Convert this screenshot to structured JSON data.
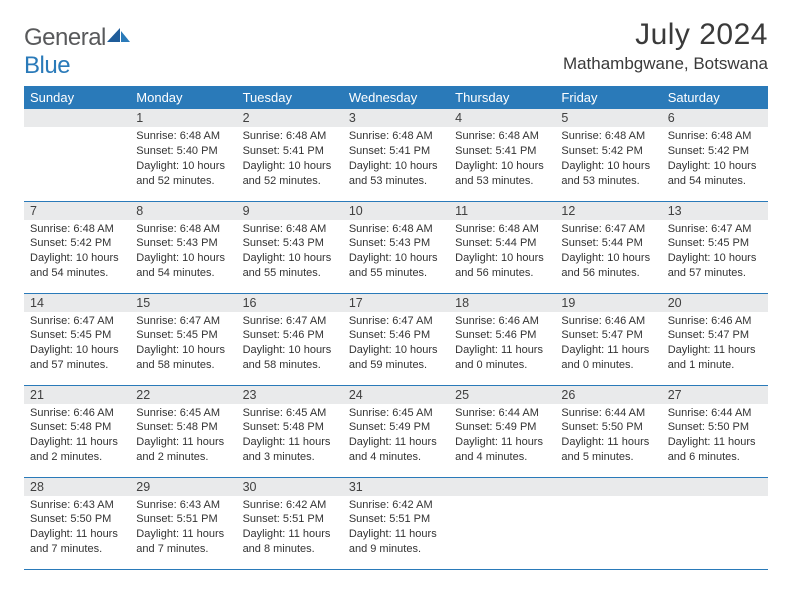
{
  "brand": {
    "part1": "General",
    "part2": "Blue"
  },
  "title": "July 2024",
  "location": "Mathambgwane, Botswana",
  "colors": {
    "accent": "#2a7ab9",
    "header_bg": "#2a7ab9",
    "header_text": "#ffffff",
    "daynum_bg": "#e9eaeb",
    "text": "#333333",
    "logo_gray": "#58595b"
  },
  "weekdays": [
    "Sunday",
    "Monday",
    "Tuesday",
    "Wednesday",
    "Thursday",
    "Friday",
    "Saturday"
  ],
  "weeks": [
    [
      {
        "day": "",
        "sunrise": "",
        "sunset": "",
        "daylight1": "",
        "daylight2": ""
      },
      {
        "day": "1",
        "sunrise": "Sunrise: 6:48 AM",
        "sunset": "Sunset: 5:40 PM",
        "daylight1": "Daylight: 10 hours",
        "daylight2": "and 52 minutes."
      },
      {
        "day": "2",
        "sunrise": "Sunrise: 6:48 AM",
        "sunset": "Sunset: 5:41 PM",
        "daylight1": "Daylight: 10 hours",
        "daylight2": "and 52 minutes."
      },
      {
        "day": "3",
        "sunrise": "Sunrise: 6:48 AM",
        "sunset": "Sunset: 5:41 PM",
        "daylight1": "Daylight: 10 hours",
        "daylight2": "and 53 minutes."
      },
      {
        "day": "4",
        "sunrise": "Sunrise: 6:48 AM",
        "sunset": "Sunset: 5:41 PM",
        "daylight1": "Daylight: 10 hours",
        "daylight2": "and 53 minutes."
      },
      {
        "day": "5",
        "sunrise": "Sunrise: 6:48 AM",
        "sunset": "Sunset: 5:42 PM",
        "daylight1": "Daylight: 10 hours",
        "daylight2": "and 53 minutes."
      },
      {
        "day": "6",
        "sunrise": "Sunrise: 6:48 AM",
        "sunset": "Sunset: 5:42 PM",
        "daylight1": "Daylight: 10 hours",
        "daylight2": "and 54 minutes."
      }
    ],
    [
      {
        "day": "7",
        "sunrise": "Sunrise: 6:48 AM",
        "sunset": "Sunset: 5:42 PM",
        "daylight1": "Daylight: 10 hours",
        "daylight2": "and 54 minutes."
      },
      {
        "day": "8",
        "sunrise": "Sunrise: 6:48 AM",
        "sunset": "Sunset: 5:43 PM",
        "daylight1": "Daylight: 10 hours",
        "daylight2": "and 54 minutes."
      },
      {
        "day": "9",
        "sunrise": "Sunrise: 6:48 AM",
        "sunset": "Sunset: 5:43 PM",
        "daylight1": "Daylight: 10 hours",
        "daylight2": "and 55 minutes."
      },
      {
        "day": "10",
        "sunrise": "Sunrise: 6:48 AM",
        "sunset": "Sunset: 5:43 PM",
        "daylight1": "Daylight: 10 hours",
        "daylight2": "and 55 minutes."
      },
      {
        "day": "11",
        "sunrise": "Sunrise: 6:48 AM",
        "sunset": "Sunset: 5:44 PM",
        "daylight1": "Daylight: 10 hours",
        "daylight2": "and 56 minutes."
      },
      {
        "day": "12",
        "sunrise": "Sunrise: 6:47 AM",
        "sunset": "Sunset: 5:44 PM",
        "daylight1": "Daylight: 10 hours",
        "daylight2": "and 56 minutes."
      },
      {
        "day": "13",
        "sunrise": "Sunrise: 6:47 AM",
        "sunset": "Sunset: 5:45 PM",
        "daylight1": "Daylight: 10 hours",
        "daylight2": "and 57 minutes."
      }
    ],
    [
      {
        "day": "14",
        "sunrise": "Sunrise: 6:47 AM",
        "sunset": "Sunset: 5:45 PM",
        "daylight1": "Daylight: 10 hours",
        "daylight2": "and 57 minutes."
      },
      {
        "day": "15",
        "sunrise": "Sunrise: 6:47 AM",
        "sunset": "Sunset: 5:45 PM",
        "daylight1": "Daylight: 10 hours",
        "daylight2": "and 58 minutes."
      },
      {
        "day": "16",
        "sunrise": "Sunrise: 6:47 AM",
        "sunset": "Sunset: 5:46 PM",
        "daylight1": "Daylight: 10 hours",
        "daylight2": "and 58 minutes."
      },
      {
        "day": "17",
        "sunrise": "Sunrise: 6:47 AM",
        "sunset": "Sunset: 5:46 PM",
        "daylight1": "Daylight: 10 hours",
        "daylight2": "and 59 minutes."
      },
      {
        "day": "18",
        "sunrise": "Sunrise: 6:46 AM",
        "sunset": "Sunset: 5:46 PM",
        "daylight1": "Daylight: 11 hours",
        "daylight2": "and 0 minutes."
      },
      {
        "day": "19",
        "sunrise": "Sunrise: 6:46 AM",
        "sunset": "Sunset: 5:47 PM",
        "daylight1": "Daylight: 11 hours",
        "daylight2": "and 0 minutes."
      },
      {
        "day": "20",
        "sunrise": "Sunrise: 6:46 AM",
        "sunset": "Sunset: 5:47 PM",
        "daylight1": "Daylight: 11 hours",
        "daylight2": "and 1 minute."
      }
    ],
    [
      {
        "day": "21",
        "sunrise": "Sunrise: 6:46 AM",
        "sunset": "Sunset: 5:48 PM",
        "daylight1": "Daylight: 11 hours",
        "daylight2": "and 2 minutes."
      },
      {
        "day": "22",
        "sunrise": "Sunrise: 6:45 AM",
        "sunset": "Sunset: 5:48 PM",
        "daylight1": "Daylight: 11 hours",
        "daylight2": "and 2 minutes."
      },
      {
        "day": "23",
        "sunrise": "Sunrise: 6:45 AM",
        "sunset": "Sunset: 5:48 PM",
        "daylight1": "Daylight: 11 hours",
        "daylight2": "and 3 minutes."
      },
      {
        "day": "24",
        "sunrise": "Sunrise: 6:45 AM",
        "sunset": "Sunset: 5:49 PM",
        "daylight1": "Daylight: 11 hours",
        "daylight2": "and 4 minutes."
      },
      {
        "day": "25",
        "sunrise": "Sunrise: 6:44 AM",
        "sunset": "Sunset: 5:49 PM",
        "daylight1": "Daylight: 11 hours",
        "daylight2": "and 4 minutes."
      },
      {
        "day": "26",
        "sunrise": "Sunrise: 6:44 AM",
        "sunset": "Sunset: 5:50 PM",
        "daylight1": "Daylight: 11 hours",
        "daylight2": "and 5 minutes."
      },
      {
        "day": "27",
        "sunrise": "Sunrise: 6:44 AM",
        "sunset": "Sunset: 5:50 PM",
        "daylight1": "Daylight: 11 hours",
        "daylight2": "and 6 minutes."
      }
    ],
    [
      {
        "day": "28",
        "sunrise": "Sunrise: 6:43 AM",
        "sunset": "Sunset: 5:50 PM",
        "daylight1": "Daylight: 11 hours",
        "daylight2": "and 7 minutes."
      },
      {
        "day": "29",
        "sunrise": "Sunrise: 6:43 AM",
        "sunset": "Sunset: 5:51 PM",
        "daylight1": "Daylight: 11 hours",
        "daylight2": "and 7 minutes."
      },
      {
        "day": "30",
        "sunrise": "Sunrise: 6:42 AM",
        "sunset": "Sunset: 5:51 PM",
        "daylight1": "Daylight: 11 hours",
        "daylight2": "and 8 minutes."
      },
      {
        "day": "31",
        "sunrise": "Sunrise: 6:42 AM",
        "sunset": "Sunset: 5:51 PM",
        "daylight1": "Daylight: 11 hours",
        "daylight2": "and 9 minutes."
      },
      {
        "day": "",
        "sunrise": "",
        "sunset": "",
        "daylight1": "",
        "daylight2": ""
      },
      {
        "day": "",
        "sunrise": "",
        "sunset": "",
        "daylight1": "",
        "daylight2": ""
      },
      {
        "day": "",
        "sunrise": "",
        "sunset": "",
        "daylight1": "",
        "daylight2": ""
      }
    ]
  ]
}
